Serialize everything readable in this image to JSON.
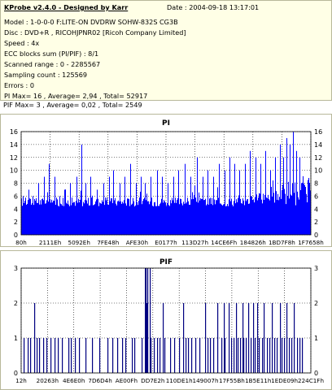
{
  "info": {
    "title": "KProbe v2.4.0 - Designed by Karr",
    "date": "Date : 2004-09-18 13:17:01",
    "lines": [
      "Model : 1-0-0-0 F:LITE-ON DVDRW SOHW-832S  CG3B",
      "Disc : DVD+R , RICOHJPNR02 [Ricoh Company Limited]",
      "Speed : 4x",
      "ECC blocks sum (PI/PIF) : 8/1",
      "Scanned range : 0 - 2285567",
      "Sampling count : 125569",
      "Errors : 0",
      "PI Max= 16 , Average= 2,94 , Total= 52917",
      "PIF Max= 3 , Average= 0,02 , Total= 2549"
    ]
  },
  "colors": {
    "bar": "#0000ff",
    "pif_bar": "#000080",
    "grid": "#000000",
    "panel_border": "#b8b89a",
    "info_bg": "#ffffe6"
  },
  "chart_data": [
    {
      "type": "bar",
      "title": "PI",
      "ylim": [
        0,
        16
      ],
      "yticks": [
        0,
        2,
        4,
        6,
        8,
        10,
        12,
        14,
        16
      ],
      "xtick_labels": [
        "80h",
        "2111Eh",
        "5092Eh",
        "7FE48h",
        "AFE30h",
        "E0177h",
        "113D27h",
        "14CE6Fh",
        "184826h",
        "1BD7F8h",
        "1F7658h"
      ],
      "grid": "dotted",
      "baseline": 5,
      "spikes": [
        [
          2,
          6
        ],
        [
          9,
          7
        ],
        [
          14,
          6
        ],
        [
          21,
          8
        ],
        [
          28,
          9
        ],
        [
          34,
          11
        ],
        [
          41,
          9
        ],
        [
          47,
          6
        ],
        [
          53,
          7
        ],
        [
          60,
          8
        ],
        [
          68,
          9
        ],
        [
          74,
          14
        ],
        [
          79,
          8
        ],
        [
          85,
          9
        ],
        [
          93,
          7
        ],
        [
          101,
          8
        ],
        [
          108,
          9
        ],
        [
          113,
          10
        ],
        [
          121,
          8
        ],
        [
          127,
          9
        ],
        [
          134,
          11
        ],
        [
          141,
          8
        ],
        [
          147,
          9
        ],
        [
          152,
          8
        ],
        [
          159,
          9
        ],
        [
          167,
          10
        ],
        [
          173,
          9
        ],
        [
          180,
          8
        ],
        [
          187,
          9
        ],
        [
          193,
          10
        ],
        [
          201,
          11
        ],
        [
          208,
          9
        ],
        [
          216,
          12
        ],
        [
          223,
          9
        ],
        [
          229,
          10
        ],
        [
          236,
          9
        ],
        [
          243,
          11
        ],
        [
          250,
          10
        ],
        [
          256,
          12
        ],
        [
          262,
          11
        ],
        [
          268,
          10
        ],
        [
          275,
          11
        ],
        [
          281,
          13
        ],
        [
          288,
          12
        ],
        [
          294,
          11
        ],
        [
          300,
          13
        ],
        [
          306,
          10
        ],
        [
          312,
          12
        ],
        [
          318,
          14
        ],
        [
          322,
          12
        ],
        [
          326,
          15
        ],
        [
          330,
          14
        ],
        [
          334,
          16
        ],
        [
          338,
          13
        ],
        [
          342,
          12
        ]
      ]
    },
    {
      "type": "bar",
      "title": "PIF",
      "ylim": [
        0,
        3
      ],
      "yticks": [
        0,
        1,
        2,
        3
      ],
      "xtick_labels": [
        "12h",
        "20263h",
        "4E6E0h",
        "7D6D4h",
        "AE00Fh",
        "DD7E2h",
        "110DE1h",
        "149007h",
        "17F55Bh",
        "1B5E11h",
        "1EDE09h",
        "224C1Fh"
      ],
      "grid": "dotted",
      "bars": [
        [
          3,
          1
        ],
        [
          8,
          1
        ],
        [
          11,
          1
        ],
        [
          16,
          2
        ],
        [
          19,
          1
        ],
        [
          22,
          1
        ],
        [
          27,
          1
        ],
        [
          31,
          1
        ],
        [
          36,
          1
        ],
        [
          41,
          1
        ],
        [
          45,
          1
        ],
        [
          50,
          1
        ],
        [
          58,
          1
        ],
        [
          61,
          1
        ],
        [
          66,
          1
        ],
        [
          71,
          1
        ],
        [
          79,
          1
        ],
        [
          87,
          1
        ],
        [
          96,
          1
        ],
        [
          106,
          1
        ],
        [
          112,
          1
        ],
        [
          118,
          1
        ],
        [
          124,
          1
        ],
        [
          128,
          1
        ],
        [
          136,
          1
        ],
        [
          139,
          1
        ],
        [
          148,
          1
        ],
        [
          152,
          3
        ],
        [
          153,
          3
        ],
        [
          154,
          2
        ],
        [
          155,
          3
        ],
        [
          158,
          3
        ],
        [
          159,
          1
        ],
        [
          163,
          1
        ],
        [
          167,
          1
        ],
        [
          170,
          1
        ],
        [
          174,
          2
        ],
        [
          176,
          1
        ],
        [
          183,
          1
        ],
        [
          188,
          1
        ],
        [
          194,
          1
        ],
        [
          199,
          2
        ],
        [
          202,
          1
        ],
        [
          205,
          1
        ],
        [
          209,
          1
        ],
        [
          214,
          1
        ],
        [
          219,
          1
        ],
        [
          226,
          2
        ],
        [
          229,
          1
        ],
        [
          232,
          1
        ],
        [
          236,
          1
        ],
        [
          241,
          2
        ],
        [
          246,
          1
        ],
        [
          249,
          2
        ],
        [
          250,
          1
        ],
        [
          255,
          2
        ],
        [
          258,
          1
        ],
        [
          261,
          1
        ],
        [
          264,
          2
        ],
        [
          266,
          1
        ],
        [
          269,
          1
        ],
        [
          272,
          2
        ],
        [
          273,
          1
        ],
        [
          276,
          1
        ],
        [
          279,
          2
        ],
        [
          282,
          1
        ],
        [
          285,
          2
        ],
        [
          287,
          1
        ],
        [
          290,
          2
        ],
        [
          292,
          1
        ],
        [
          296,
          1
        ],
        [
          298,
          2
        ],
        [
          302,
          1
        ],
        [
          305,
          1
        ],
        [
          308,
          2
        ],
        [
          311,
          1
        ],
        [
          314,
          1
        ],
        [
          318,
          2
        ],
        [
          320,
          1
        ],
        [
          323,
          1
        ],
        [
          326,
          2
        ],
        [
          329,
          1
        ],
        [
          332,
          1
        ],
        [
          335,
          2
        ],
        [
          339,
          1
        ],
        [
          342,
          1
        ],
        [
          345,
          1
        ]
      ]
    }
  ]
}
